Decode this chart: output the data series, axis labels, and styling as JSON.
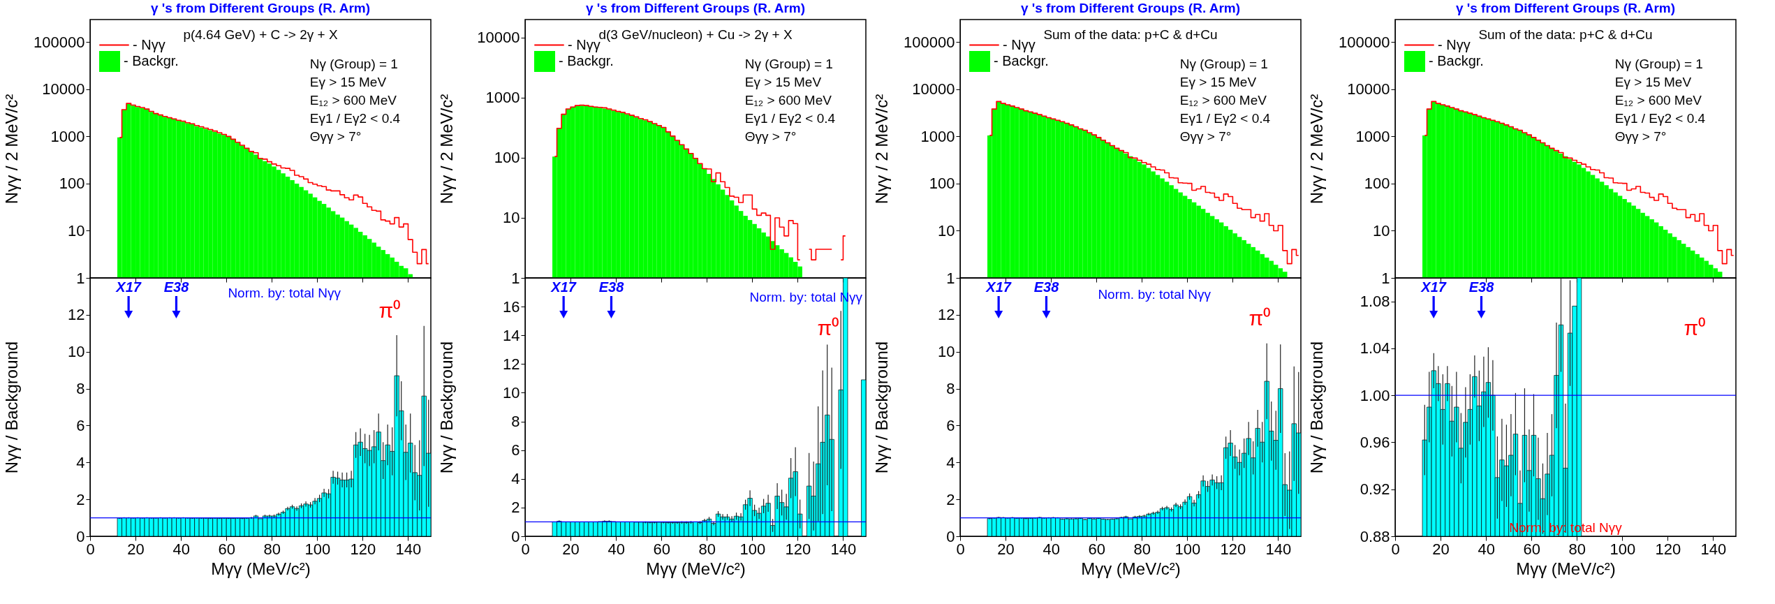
{
  "chart_data": [
    {
      "type": "histogram",
      "title": "γ 's from Different Groups (R. Arm)",
      "subtitle": "p(4.64 GeV) + C -> 2γ + X",
      "ylabel": "Nγγ / 2 MeV/c²",
      "log": true,
      "xlim": [
        0,
        150
      ],
      "xticks": [
        0,
        20,
        40,
        60,
        80,
        100,
        120,
        140
      ],
      "ylim": [
        1,
        300000
      ],
      "yticks": [
        1,
        10,
        100,
        1000,
        10000,
        100000
      ],
      "tick_labels": "y",
      "legend": "top left",
      "annotations": [
        "Nγ (Group) = 1",
        "Eγ > 15 MeV",
        "E₁₂ > 600 MeV",
        "Eγ1 / Eγ2 < 0.4",
        "Θγγ  > 7°"
      ],
      "series": [
        {
          "name": "- Nγγ",
          "type": "step",
          "color": "#ff0000",
          "x": [
            13,
            15,
            17,
            19,
            21,
            23,
            25,
            27,
            29,
            31,
            33,
            35,
            37,
            39,
            41,
            43,
            45,
            47,
            49,
            51,
            53,
            55,
            57,
            59,
            61,
            63,
            65,
            67,
            69,
            71,
            73,
            75,
            77,
            79,
            81,
            83,
            85,
            87,
            89,
            91,
            93,
            95,
            97,
            99,
            101,
            103,
            105,
            107,
            109,
            111,
            113,
            115,
            117,
            119,
            121,
            123,
            125,
            127,
            129,
            131,
            133,
            135,
            137,
            139,
            141,
            143,
            145,
            147,
            149
          ],
          "values": [
            950,
            3700,
            5000,
            4600,
            4300,
            4100,
            3800,
            3400,
            3050,
            2850,
            2650,
            2500,
            2350,
            2200,
            2100,
            1950,
            1850,
            1700,
            1600,
            1500,
            1400,
            1300,
            1200,
            1100,
            1000,
            870,
            750,
            650,
            560,
            480,
            450,
            340,
            330,
            290,
            260,
            240,
            215,
            210,
            190,
            150,
            140,
            125,
            105,
            97,
            90,
            86,
            73,
            70,
            70,
            58,
            50,
            45,
            57,
            52,
            38,
            32,
            27,
            26,
            17,
            16,
            14,
            19,
            12,
            14,
            6.5,
            3.5,
            2,
            4,
            2
          ]
        },
        {
          "name": "- Backgr.",
          "type": "histogram",
          "color": "#00ff00",
          "bins": [
            12,
            14,
            16,
            18,
            20,
            22,
            24,
            26,
            28,
            30,
            32,
            34,
            36,
            38,
            40,
            42,
            44,
            46,
            48,
            50,
            52,
            54,
            56,
            58,
            60,
            62,
            64,
            66,
            68,
            70,
            72,
            74,
            76,
            78,
            80,
            82,
            84,
            86,
            88,
            90,
            92,
            94,
            96,
            98,
            100,
            102,
            104,
            106,
            108,
            110,
            112,
            114,
            116,
            118,
            120,
            122,
            124,
            126,
            128,
            130,
            132,
            134,
            136,
            138,
            140,
            142
          ],
          "values": [
            950,
            3700,
            5000,
            4500,
            4200,
            4000,
            3700,
            3300,
            3000,
            2800,
            2600,
            2450,
            2300,
            2150,
            2050,
            1900,
            1800,
            1650,
            1550,
            1450,
            1350,
            1250,
            1150,
            1070,
            1000,
            860,
            740,
            640,
            550,
            470,
            410,
            350,
            300,
            265,
            230,
            195,
            165,
            140,
            118,
            100,
            85,
            72,
            61,
            51,
            43,
            37,
            31,
            26,
            22,
            19,
            16,
            13.5,
            11.5,
            9.5,
            8,
            6.7,
            5.6,
            4.6,
            3.9,
            3.2,
            2.7,
            2.2,
            1.8,
            1.6,
            1.2
          ]
        }
      ]
    },
    {
      "type": "histogram",
      "xlabel": "Mγγ   (MeV/c²)",
      "ylabel": "Nγγ  /  Background",
      "xlim": [
        0,
        150
      ],
      "xticks": [
        0,
        20,
        40,
        60,
        80,
        100,
        120,
        140
      ],
      "ylim": [
        0,
        14
      ],
      "yticks": [
        0,
        2,
        4,
        6,
        8,
        10,
        12
      ],
      "annotations": [
        "X17",
        "E38",
        "Norm. by: total Nγγ",
        "π⁰"
      ],
      "ref_lines": [
        {
          "axis": "y",
          "value": 1,
          "color": "#0000ff"
        }
      ],
      "bins": [
        12,
        14,
        16,
        18,
        20,
        22,
        24,
        26,
        28,
        30,
        32,
        34,
        36,
        38,
        40,
        42,
        44,
        46,
        48,
        50,
        52,
        54,
        56,
        58,
        60,
        62,
        64,
        66,
        68,
        70,
        72,
        74,
        76,
        78,
        80,
        82,
        84,
        86,
        88,
        90,
        92,
        94,
        96,
        98,
        100,
        102,
        104,
        106,
        108,
        110,
        112,
        114,
        116,
        118,
        120,
        122,
        124,
        126,
        128,
        130,
        132,
        134,
        136,
        138,
        140,
        142,
        144,
        146,
        148,
        150
      ],
      "series": [
        {
          "color": "#00ffff",
          "values": [
            0.98,
            1.0,
            1.0,
            0.99,
            1.0,
            0.99,
            1.0,
            0.99,
            0.99,
            1.0,
            0.99,
            1.0,
            1.0,
            0.99,
            1.0,
            0.99,
            0.98,
            0.99,
            0.98,
            0.98,
            0.97,
            0.98,
            0.97,
            0.98,
            0.97,
            0.97,
            0.98,
            0.97,
            0.98,
            1.0,
            1.1,
            0.95,
            1.1,
            1.1,
            1.1,
            1.2,
            1.3,
            1.5,
            1.6,
            1.5,
            1.65,
            1.75,
            1.7,
            1.9,
            2.05,
            2.35,
            2.3,
            3.2,
            3.15,
            3.05,
            3.05,
            3.1,
            4.95,
            5.1,
            4.75,
            4.65,
            4.85,
            5.65,
            4.1,
            4.95,
            4.6,
            8.7,
            6.8,
            4.55,
            5.05,
            3.45,
            3.3,
            7.6,
            4.5
          ],
          "errors": [
            0.03,
            0.03,
            0.03,
            0.03,
            0.03,
            0.03,
            0.03,
            0.03,
            0.03,
            0.03,
            0.03,
            0.03,
            0.03,
            0.03,
            0.03,
            0.03,
            0.03,
            0.03,
            0.03,
            0.03,
            0.03,
            0.03,
            0.03,
            0.03,
            0.03,
            0.03,
            0.03,
            0.04,
            0.04,
            0.05,
            0.06,
            null,
            0.07,
            0.07,
            0.08,
            0.08,
            0.09,
            0.1,
            0.11,
            0.12,
            0.13,
            0.14,
            0.15,
            0.17,
            0.2,
            0.22,
            0.25,
            0.35,
            0.35,
            0.4,
            0.4,
            0.45,
            0.7,
            0.75,
            0.8,
            0.85,
            0.9,
            1.0,
            1.0,
            1.1,
            1.3,
            2.2,
            1.6,
            1.5,
            1.6,
            1.5,
            1.9,
            3.8,
            2.9
          ]
        }
      ]
    },
    {
      "type": "histogram",
      "title": "γ 's from Different Groups (R. Arm)",
      "subtitle": "d(3 GeV/nucleon) + Cu -> 2γ + X",
      "ylabel": "Nγγ / 2 MeV/c²",
      "log": true,
      "xlim": [
        0,
        150
      ],
      "xticks": [
        0,
        20,
        40,
        60,
        80,
        100,
        120,
        140
      ],
      "ylim": [
        1,
        20000
      ],
      "yticks": [
        1,
        10,
        100,
        1000,
        10000
      ],
      "tick_labels": "y",
      "legend": "top left",
      "annotations": [
        "Nγ (Group) = 1",
        "Eγ > 15 MeV",
        "E₁₂ > 600 MeV",
        "Eγ1 / Eγ2 < 0.4",
        "Θγγ  > 7°"
      ],
      "series": [
        {
          "name": "- Nγγ",
          "type": "step",
          "color": "#ff0000",
          "x": [
            13,
            15,
            17,
            19,
            21,
            23,
            25,
            27,
            29,
            31,
            33,
            35,
            37,
            39,
            41,
            43,
            45,
            47,
            49,
            51,
            53,
            55,
            57,
            59,
            61,
            63,
            65,
            67,
            69,
            71,
            73,
            75,
            77,
            79,
            81,
            83,
            85,
            87,
            89,
            91,
            93,
            95,
            97,
            99,
            101,
            103,
            105,
            107,
            109,
            111,
            113,
            115,
            117,
            119,
            121,
            123,
            125,
            127,
            129,
            131,
            133,
            135,
            137,
            139,
            141
          ],
          "values": [
            105,
            310,
            530,
            650,
            700,
            740,
            750,
            740,
            720,
            700,
            690,
            680,
            650,
            620,
            590,
            570,
            540,
            510,
            480,
            450,
            430,
            400,
            370,
            345,
            320,
            270,
            230,
            195,
            165,
            140,
            118,
            98,
            80,
            66,
            65,
            40,
            56,
            40,
            32,
            23,
            22,
            18,
            24,
            24,
            14,
            11,
            12,
            11,
            3,
            10,
            7,
            5,
            9,
            8,
            2,
            null,
            3,
            2,
            3,
            3,
            3,
            3,
            null,
            2,
            5
          ]
        },
        {
          "name": "- Backgr.",
          "type": "histogram",
          "color": "#00ff00",
          "bins": [
            12,
            14,
            16,
            18,
            20,
            22,
            24,
            26,
            28,
            30,
            32,
            34,
            36,
            38,
            40,
            42,
            44,
            46,
            48,
            50,
            52,
            54,
            56,
            58,
            60,
            62,
            64,
            66,
            68,
            70,
            72,
            74,
            76,
            78,
            80,
            82,
            84,
            86,
            88,
            90,
            92,
            94,
            96,
            98,
            100,
            102,
            104,
            106,
            108,
            110,
            112,
            114,
            116,
            118,
            120,
            122
          ],
          "values": [
            105,
            310,
            530,
            650,
            700,
            730,
            740,
            730,
            720,
            700,
            680,
            660,
            640,
            610,
            580,
            560,
            530,
            500,
            470,
            440,
            420,
            400,
            370,
            345,
            320,
            270,
            230,
            195,
            165,
            140,
            118,
            98,
            80,
            66,
            54,
            44,
            36,
            29.5,
            24,
            19.5,
            16,
            13,
            10.8,
            9.2,
            7.9,
            6.7,
            5.7,
            4.9,
            4.1,
            3.5,
            3.0,
            2.6,
            2.2,
            1.85,
            1.55
          ]
        }
      ]
    },
    {
      "type": "histogram",
      "xlabel": "Mγγ   (MeV/c²)",
      "ylabel": "Nγγ  /  Background",
      "xlim": [
        0,
        150
      ],
      "xticks": [
        0,
        20,
        40,
        60,
        80,
        100,
        120,
        140
      ],
      "ylim": [
        0,
        18
      ],
      "yticks": [
        0,
        2,
        4,
        6,
        8,
        10,
        12,
        14,
        16
      ],
      "annotations": [
        "X17",
        "E38",
        "Norm. by: total Nγγ",
        "π⁰"
      ],
      "ref_lines": [
        {
          "axis": "y",
          "value": 1,
          "color": "#0000ff"
        }
      ],
      "bins": [
        12,
        14,
        16,
        18,
        20,
        22,
        24,
        26,
        28,
        30,
        32,
        34,
        36,
        38,
        40,
        42,
        44,
        46,
        48,
        50,
        52,
        54,
        56,
        58,
        60,
        62,
        64,
        66,
        68,
        70,
        72,
        74,
        76,
        78,
        80,
        82,
        84,
        86,
        88,
        90,
        92,
        94,
        96,
        98,
        100,
        102,
        104,
        106,
        108,
        110,
        112,
        114,
        116,
        118,
        120,
        122,
        124,
        126,
        128,
        130,
        132,
        134,
        136,
        138,
        140,
        142,
        148,
        150
      ],
      "series": [
        {
          "color": "#00ffff",
          "values": [
            1.0,
            1.05,
            1.0,
            1.0,
            1.0,
            1.0,
            1.0,
            1.0,
            1.0,
            1.0,
            1.02,
            1.05,
            1.05,
            1.02,
            1.0,
            1.0,
            1.0,
            1.0,
            0.98,
            0.98,
            0.97,
            0.96,
            0.96,
            0.97,
            0.96,
            0.95,
            0.95,
            0.95,
            0.96,
            0.95,
            0.97,
            1.0,
            0.95,
            1.1,
            1.2,
            0.9,
            1.55,
            1.35,
            1.35,
            1.2,
            1.4,
            1.35,
            2.2,
            2.65,
            1.8,
            1.6,
            2.1,
            2.3,
            0.75,
            2.8,
            2.35,
            2.05,
            4.05,
            4.5,
            1.55,
            null,
            3.5,
            2.8,
            5.05,
            6.55,
            8.45,
            6.75,
            null,
            10.2,
            18,
            null,
            10.9
          ],
          "errors": [
            null,
            0.06,
            null,
            null,
            null,
            null,
            null,
            null,
            null,
            null,
            null,
            0.06,
            0.06,
            null,
            null,
            null,
            null,
            null,
            null,
            null,
            0.06,
            0.06,
            0.06,
            null,
            0.06,
            0.06,
            0.07,
            0.07,
            0.08,
            0.08,
            0.09,
            null,
            0.1,
            0.12,
            0.15,
            0.13,
            0.2,
            0.2,
            0.2,
            0.2,
            0.25,
            0.25,
            0.35,
            0.55,
            0.4,
            0.4,
            0.5,
            0.6,
            0.45,
            0.9,
            0.9,
            0.9,
            1.4,
            1.7,
            1.0,
            null,
            2.3,
            2.4,
            4.0,
            5.0,
            4.9,
            5.0,
            null,
            5.5,
            null,
            null,
            null
          ]
        }
      ]
    },
    {
      "type": "histogram",
      "title": "γ 's from Different Groups (R. Arm)",
      "subtitle": "Sum of the data: p+C & d+Cu",
      "ylabel": "Nγγ / 2 MeV/c²",
      "log": true,
      "xlim": [
        0,
        150
      ],
      "xticks": [
        0,
        20,
        40,
        60,
        80,
        100,
        120,
        140
      ],
      "ylim": [
        1,
        300000
      ],
      "yticks": [
        1,
        10,
        100,
        1000,
        10000,
        100000
      ],
      "tick_labels": "y",
      "legend": "top left",
      "annotations": [
        "Nγ (Group) = 1",
        "Eγ > 15 MeV",
        "E₁₂ > 600 MeV",
        "Eγ1 / Eγ2 < 0.4",
        "Θγγ  > 7°"
      ],
      "series": [
        {
          "name": "- Nγγ",
          "type": "step",
          "color": "#ff0000",
          "x": [
            13,
            15,
            17,
            19,
            21,
            23,
            25,
            27,
            29,
            31,
            33,
            35,
            37,
            39,
            41,
            43,
            45,
            47,
            49,
            51,
            53,
            55,
            57,
            59,
            61,
            63,
            65,
            67,
            69,
            71,
            73,
            75,
            77,
            79,
            81,
            83,
            85,
            87,
            89,
            91,
            93,
            95,
            97,
            99,
            101,
            103,
            105,
            107,
            109,
            111,
            113,
            115,
            117,
            119,
            121,
            123,
            125,
            127,
            129,
            131,
            133,
            135,
            137,
            139,
            141,
            143,
            145,
            147,
            149
          ],
          "values": [
            1050,
            3800,
            5500,
            5000,
            4700,
            4400,
            4100,
            3800,
            3500,
            3300,
            3100,
            2900,
            2700,
            2500,
            2350,
            2200,
            2050,
            1900,
            1750,
            1600,
            1450,
            1350,
            1200,
            1080,
            950,
            830,
            730,
            640,
            560,
            500,
            455,
            356,
            347,
            312,
            280,
            258,
            226,
            199,
            194,
            169,
            133,
            131,
            104,
            102,
            101,
            72,
            77,
            87,
            65,
            63,
            51,
            44,
            60,
            53,
            38,
            30,
            28,
            28,
            19,
            22,
            16,
            23,
            13,
            10,
            13,
            3.8,
            2,
            4,
            3
          ]
        },
        {
          "name": "- Backgr.",
          "type": "histogram",
          "color": "#00ff00",
          "bins": [
            12,
            14,
            16,
            18,
            20,
            22,
            24,
            26,
            28,
            30,
            32,
            34,
            36,
            38,
            40,
            42,
            44,
            46,
            48,
            50,
            52,
            54,
            56,
            58,
            60,
            62,
            64,
            66,
            68,
            70,
            72,
            74,
            76,
            78,
            80,
            82,
            84,
            86,
            88,
            90,
            92,
            94,
            96,
            98,
            100,
            102,
            104,
            106,
            108,
            110,
            112,
            114,
            116,
            118,
            120,
            122,
            124,
            126,
            128,
            130,
            132,
            134,
            136,
            138,
            140,
            142,
            144
          ],
          "values": [
            1050,
            3800,
            5500,
            5000,
            4700,
            4400,
            4100,
            3800,
            3500,
            3300,
            3100,
            2900,
            2700,
            2500,
            2350,
            2200,
            2050,
            1900,
            1750,
            1600,
            1450,
            1350,
            1200,
            1080,
            950,
            830,
            730,
            640,
            560,
            490,
            430,
            380,
            330,
            290,
            255,
            215,
            181,
            153,
            129,
            109,
            92,
            77,
            65,
            55,
            47,
            40,
            34,
            29,
            24,
            20.5,
            17.5,
            15,
            12.5,
            10.5,
            8.8,
            7.4,
            6.3,
            5.3,
            4.5,
            3.8,
            3.2,
            2.7,
            2.3,
            1.9,
            1.6,
            1.35
          ]
        }
      ]
    },
    {
      "type": "histogram",
      "xlabel": "Mγγ   (MeV/c²)",
      "ylabel": "Nγγ  /  Background",
      "xlim": [
        0,
        150
      ],
      "xticks": [
        0,
        20,
        40,
        60,
        80,
        100,
        120,
        140
      ],
      "ylim": [
        0,
        14
      ],
      "yticks": [
        0,
        2,
        4,
        6,
        8,
        10,
        12
      ],
      "annotations": [
        "X17",
        "E38",
        "Norm. by: total Nγγ",
        "π⁰"
      ],
      "ref_lines": [
        {
          "axis": "y",
          "value": 1,
          "color": "#0000ff"
        }
      ],
      "bins": [
        12,
        14,
        16,
        18,
        20,
        22,
        24,
        26,
        28,
        30,
        32,
        34,
        36,
        38,
        40,
        42,
        44,
        46,
        48,
        50,
        52,
        54,
        56,
        58,
        60,
        62,
        64,
        66,
        68,
        70,
        72,
        74,
        76,
        78,
        80,
        82,
        84,
        86,
        88,
        90,
        92,
        94,
        96,
        98,
        100,
        102,
        104,
        106,
        108,
        110,
        112,
        114,
        116,
        118,
        120,
        122,
        124,
        126,
        128,
        130,
        132,
        134,
        136,
        138,
        140,
        142,
        144,
        146,
        148,
        150
      ],
      "series": [
        {
          "color": "#00ffff",
          "values": [
            0.96,
            0.99,
            1.02,
            1.01,
            0.99,
            1.01,
            0.98,
            0.99,
            0.96,
            0.98,
            0.99,
            1.02,
            0.99,
            1.0,
            1.01,
            1.0,
            0.93,
            0.95,
            0.94,
            0.95,
            0.97,
            0.91,
            0.97,
            0.94,
            0.97,
            0.93,
            0.91,
            0.93,
            0.95,
            1.02,
            1.06,
            0.94,
            1.05,
            1.08,
            1.1,
            1.2,
            1.25,
            1.3,
            1.5,
            1.55,
            1.45,
            1.7,
            1.6,
            1.85,
            2.15,
            1.8,
            2.25,
            3.0,
            2.7,
            3.05,
            2.9,
            2.9,
            4.8,
            5.05,
            4.3,
            4.0,
            4.5,
            5.3,
            4.25,
            5.85,
            5.1,
            8.4,
            5.7,
            5.2,
            8.0,
            2.8,
            2.5,
            6.1,
            5.6
          ],
          "errors": [
            0.03,
            0.03,
            0.03,
            0.03,
            0.03,
            0.03,
            0.03,
            0.03,
            0.03,
            0.03,
            0.03,
            0.03,
            0.03,
            0.03,
            0.03,
            0.03,
            0.03,
            0.03,
            0.03,
            0.03,
            0.03,
            0.03,
            0.03,
            0.03,
            0.03,
            0.03,
            0.03,
            0.03,
            0.03,
            0.04,
            0.05,
            null,
            0.06,
            0.06,
            0.07,
            0.07,
            0.08,
            0.09,
            0.1,
            0.1,
            0.11,
            0.12,
            0.13,
            0.15,
            0.17,
            0.18,
            0.2,
            0.3,
            0.3,
            0.3,
            0.35,
            0.4,
            0.6,
            0.7,
            0.65,
            0.7,
            0.8,
            0.9,
            0.9,
            1.0,
            1.1,
            2.05,
            1.6,
            1.6,
            2.4,
            1.7,
            2.1,
            3.1,
            3.3
          ]
        }
      ]
    },
    {
      "type": "histogram",
      "title": "γ 's from Different Groups (R. Arm)",
      "subtitle": "Sum of the data: p+C & d+Cu",
      "ylabel": "Nγγ / 2 MeV/c²",
      "log": true,
      "xlim": [
        0,
        150
      ],
      "xticks": [
        0,
        20,
        40,
        60,
        80,
        100,
        120,
        140
      ],
      "ylim": [
        1,
        300000
      ],
      "yticks": [
        1,
        10,
        100,
        1000,
        10000,
        100000
      ],
      "tick_labels": "y",
      "legend": "top left",
      "annotations": [
        "Nγ (Group) = 1",
        "Eγ > 15 MeV",
        "E₁₂ > 600 MeV",
        "Eγ1 / Eγ2 < 0.4",
        "Θγγ  > 7°"
      ],
      "series": [
        {
          "name": "- Nγγ",
          "type": "step",
          "color": "#ff0000",
          "x": [
            13,
            15,
            17,
            19,
            21,
            23,
            25,
            27,
            29,
            31,
            33,
            35,
            37,
            39,
            41,
            43,
            45,
            47,
            49,
            51,
            53,
            55,
            57,
            59,
            61,
            63,
            65,
            67,
            69,
            71,
            73,
            75,
            77,
            79,
            81,
            83,
            85,
            87,
            89,
            91,
            93,
            95,
            97,
            99,
            101,
            103,
            105,
            107,
            109,
            111,
            113,
            115,
            117,
            119,
            121,
            123,
            125,
            127,
            129,
            131,
            133,
            135,
            137,
            139,
            141,
            143,
            145,
            147,
            149
          ],
          "values": [
            1050,
            3800,
            5500,
            5000,
            4700,
            4400,
            4100,
            3800,
            3500,
            3300,
            3100,
            2900,
            2700,
            2500,
            2350,
            2200,
            2050,
            1900,
            1750,
            1600,
            1450,
            1350,
            1200,
            1080,
            950,
            830,
            730,
            640,
            560,
            500,
            455,
            356,
            347,
            312,
            280,
            258,
            226,
            199,
            194,
            169,
            133,
            131,
            104,
            102,
            101,
            72,
            77,
            87,
            65,
            63,
            51,
            44,
            60,
            53,
            38,
            30,
            28,
            28,
            19,
            22,
            16,
            23,
            13,
            10,
            13,
            3.8,
            2,
            4,
            3
          ]
        },
        {
          "name": "- Backgr.",
          "type": "histogram",
          "color": "#00ff00",
          "bins": [
            12,
            14,
            16,
            18,
            20,
            22,
            24,
            26,
            28,
            30,
            32,
            34,
            36,
            38,
            40,
            42,
            44,
            46,
            48,
            50,
            52,
            54,
            56,
            58,
            60,
            62,
            64,
            66,
            68,
            70,
            72,
            74,
            76,
            78,
            80,
            82,
            84,
            86,
            88,
            90,
            92,
            94,
            96,
            98,
            100,
            102,
            104,
            106,
            108,
            110,
            112,
            114,
            116,
            118,
            120,
            122,
            124,
            126,
            128,
            130,
            132,
            134,
            136,
            138,
            140,
            142,
            144
          ],
          "values": [
            1050,
            3800,
            5500,
            5000,
            4700,
            4400,
            4100,
            3800,
            3500,
            3300,
            3100,
            2900,
            2700,
            2500,
            2350,
            2200,
            2050,
            1900,
            1750,
            1600,
            1450,
            1350,
            1200,
            1080,
            950,
            830,
            730,
            640,
            560,
            490,
            430,
            380,
            330,
            290,
            255,
            215,
            181,
            153,
            129,
            109,
            92,
            77,
            65,
            55,
            47,
            40,
            34,
            29,
            24,
            20.5,
            17.5,
            15,
            12.5,
            10.5,
            8.8,
            7.4,
            6.3,
            5.3,
            4.5,
            3.8,
            3.2,
            2.7,
            2.3,
            1.9,
            1.6,
            1.35
          ]
        }
      ]
    },
    {
      "type": "histogram",
      "xlabel": "Mγγ   (MeV/c²)",
      "ylabel": "Nγγ  /  Background",
      "xlim": [
        0,
        150
      ],
      "xticks": [
        0,
        20,
        40,
        60,
        80,
        100,
        120,
        140
      ],
      "ylim": [
        0.88,
        1.1
      ],
      "yticks": [
        0.88,
        0.92,
        0.96,
        {
          "value": 1,
          "label": "1.00"
        },
        1.04,
        1.08
      ],
      "annotations": [
        "X17",
        "E38",
        "Norm. by: total Nγγ",
        "π⁰"
      ],
      "ref_lines": [
        {
          "axis": "y",
          "value": 1,
          "color": "#0000ff"
        }
      ],
      "bins": [
        12,
        14,
        16,
        18,
        20,
        22,
        24,
        26,
        28,
        30,
        32,
        34,
        36,
        38,
        40,
        42,
        44,
        46,
        48,
        50,
        52,
        54,
        56,
        58,
        60,
        62,
        64,
        66,
        68,
        70,
        72,
        74,
        76,
        78,
        80,
        82
      ],
      "series": [
        {
          "color": "#00ffff",
          "values": [
            0.962,
            0.99,
            1.021,
            1.01,
            0.988,
            1.01,
            0.978,
            0.99,
            0.955,
            0.977,
            0.988,
            1.016,
            0.991,
            1.003,
            1.011,
            1.0,
            0.93,
            0.945,
            0.94,
            0.949,
            0.967,
            0.908,
            0.966,
            0.936,
            0.966,
            0.929,
            0.912,
            0.933,
            0.949,
            1.017,
            1.06,
            0.938,
            1.053,
            1.076,
            1.1
          ],
          "errors": [
            0.03,
            0.03,
            0.015,
            0.015,
            0.03,
            0.015,
            0.03,
            0.03,
            0.03,
            0.03,
            0.03,
            0.018,
            0.03,
            0.03,
            0.03,
            0.03,
            0.035,
            0.035,
            0.035,
            0.035,
            0.035,
            0.028,
            0.04,
            0.035,
            0.035,
            0.035,
            0.03,
            0.035,
            0.035,
            0.045,
            0.04,
            0.055,
            0.045,
            null,
            null
          ]
        }
      ]
    }
  ]
}
